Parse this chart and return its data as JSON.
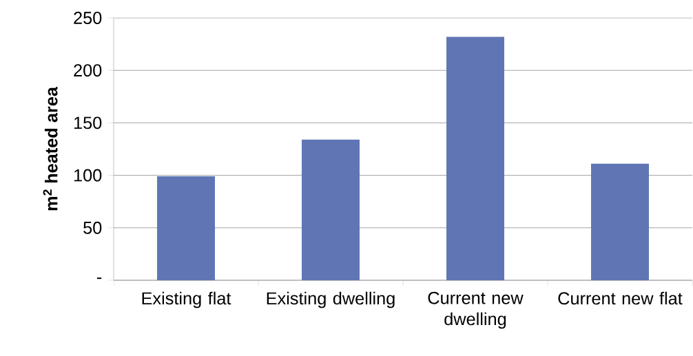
{
  "chart_data": {
    "type": "bar",
    "ylabel": "m$^{2}$ heated area",
    "categories": [
      "Existing flat",
      "Existing dwelling",
      "Current new dwelling",
      "Current new flat"
    ],
    "values": [
      99,
      134,
      232,
      111
    ],
    "color": "#6076b4",
    "ylim": [
      0,
      250
    ],
    "yticks": [
      {
        "value": 0,
        "label": "-"
      },
      50,
      100,
      150,
      200,
      250
    ],
    "grid": "y"
  }
}
